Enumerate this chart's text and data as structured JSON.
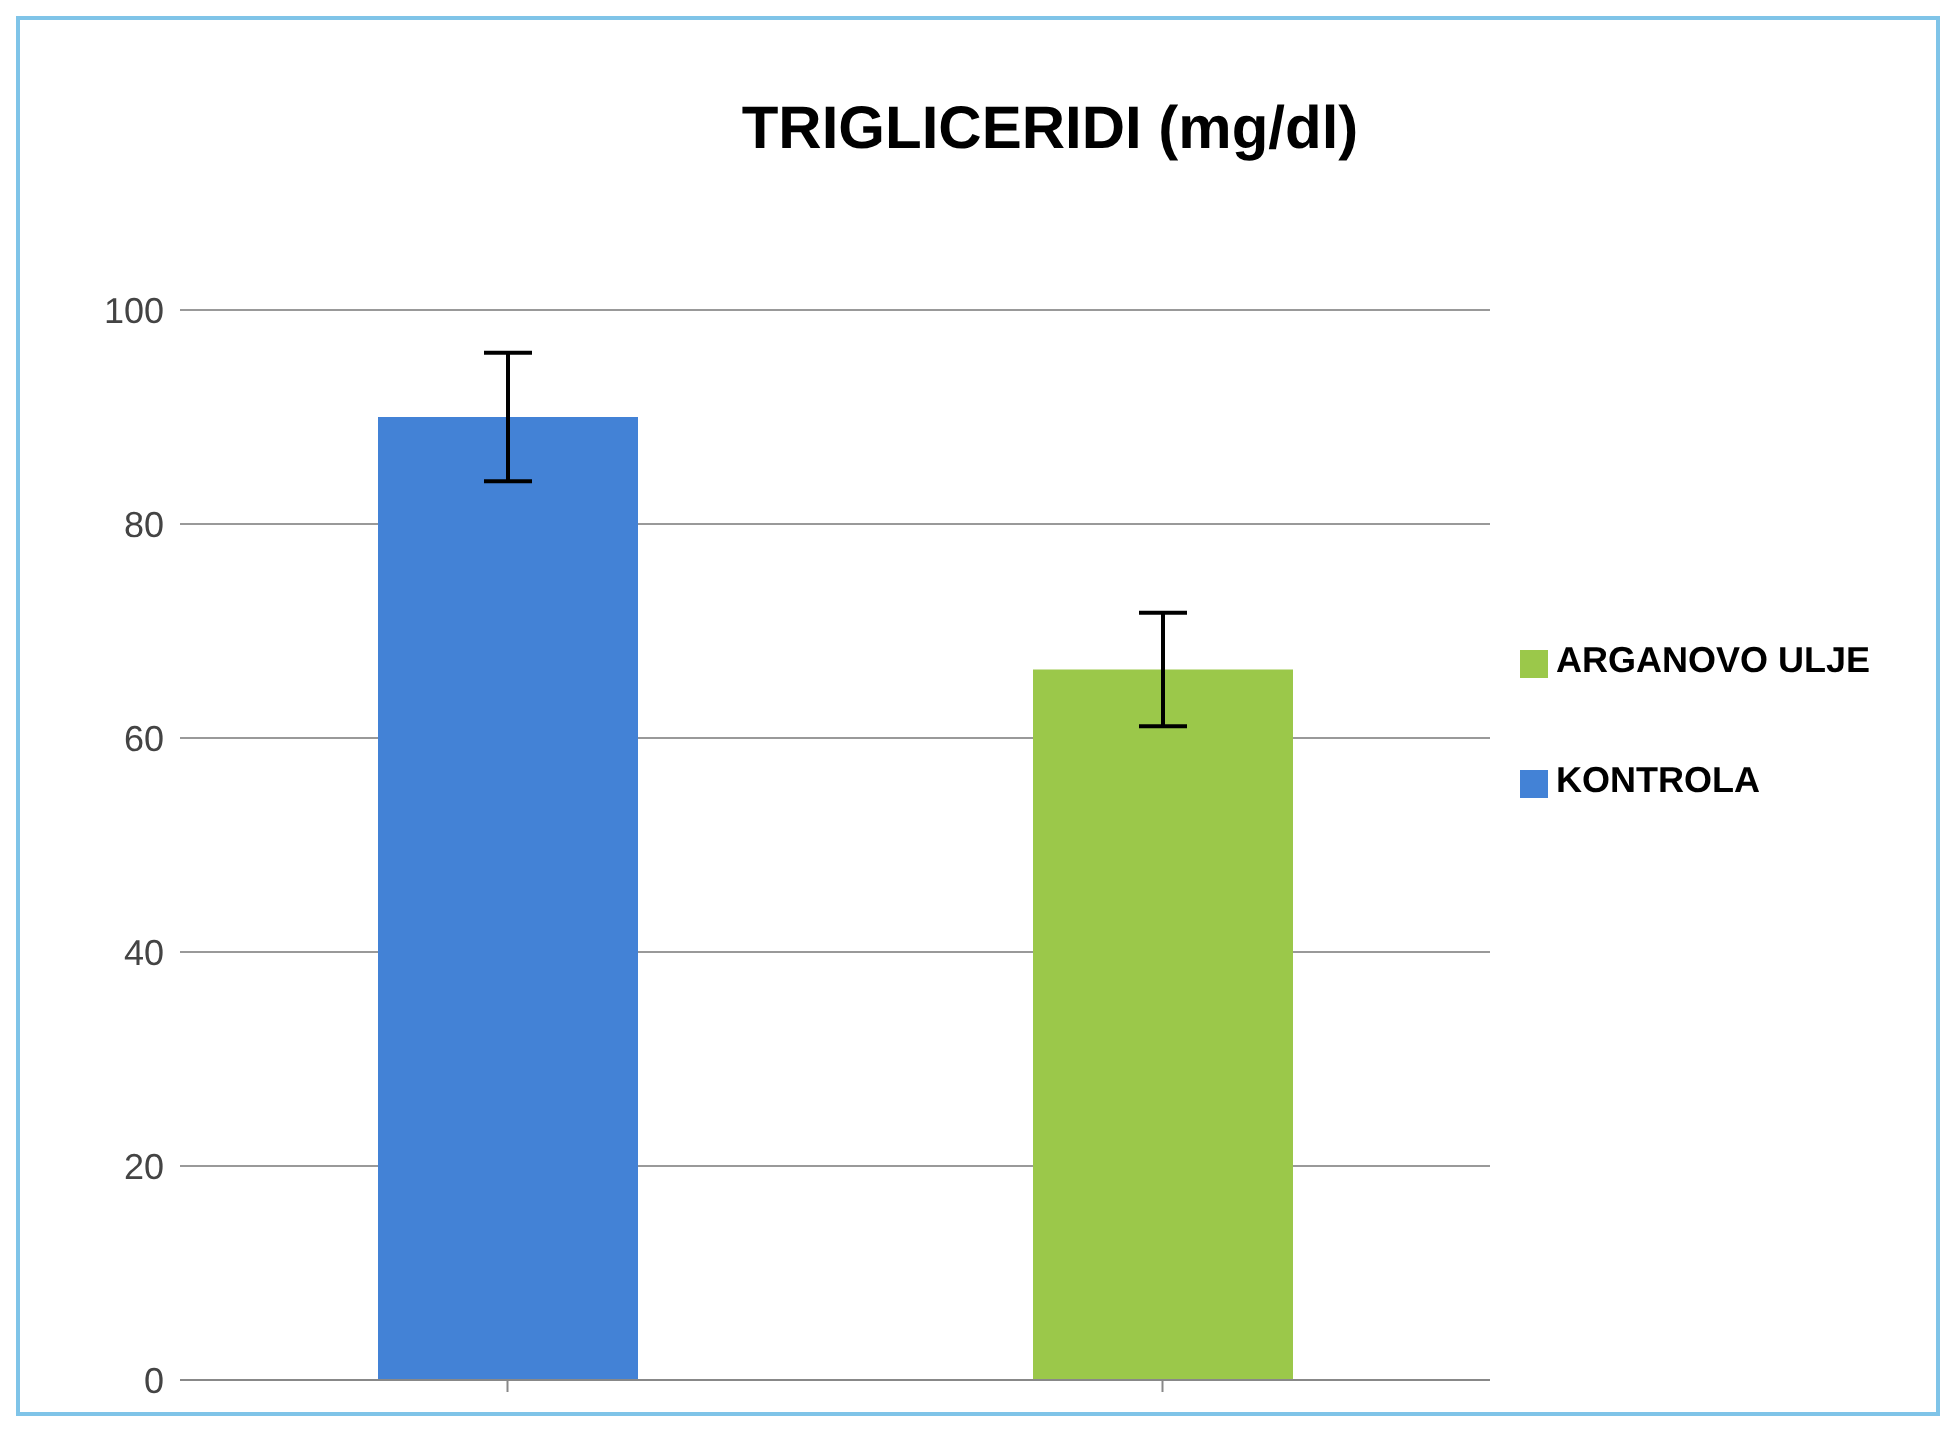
{
  "chart_data": {
    "type": "bar",
    "title": "TRIGLICERIDI (mg/dl)",
    "categories": [
      null,
      null
    ],
    "series": [
      {
        "name": "KONTROLA",
        "color": "#4382d6",
        "values": [
          90,
          null
        ],
        "errors": [
          6,
          null
        ]
      },
      {
        "name": "ARGANOVO ULJE",
        "color": "#9bc84a",
        "values": [
          null,
          66.4
        ],
        "errors": [
          null,
          5.3
        ]
      }
    ],
    "ylim": [
      0,
      100
    ],
    "yticks": [
      0,
      20,
      40,
      60,
      80,
      100
    ],
    "grid": "y",
    "legend": "right"
  }
}
